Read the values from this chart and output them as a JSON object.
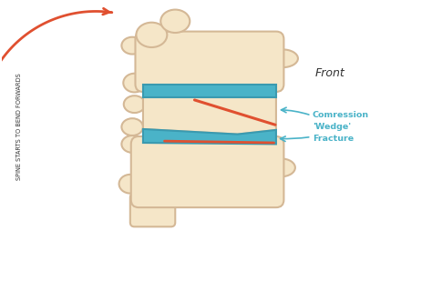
{
  "background_color": "#ffffff",
  "bone_color": "#f5e6c8",
  "bone_outline": "#d4b896",
  "disc_color": "#4ab3c8",
  "disc_outline": "#3a9ab0",
  "fracture_line_color": "#e05030",
  "arrow_color": "#e05030",
  "label_color": "#3ab0c8",
  "text_color": "#333333",
  "front_label": "Front",
  "compression_label": "Comression\n'Wedge'\nFracture",
  "spine_label": "Spine Starts To Bend Forwards",
  "figsize": [
    4.74,
    3.31
  ],
  "dpi": 100
}
